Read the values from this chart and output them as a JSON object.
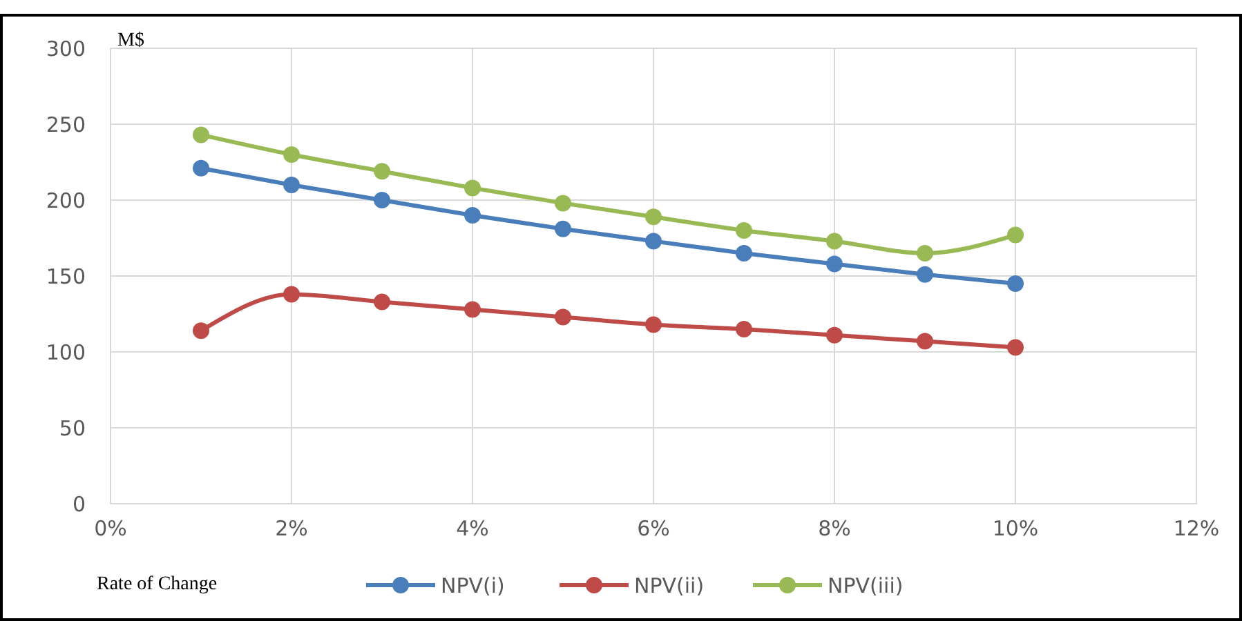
{
  "chart_data": {
    "type": "line",
    "ylabel": "M$",
    "xlabel": "Rate of Change",
    "x": [
      1,
      2,
      3,
      4,
      5,
      6,
      7,
      8,
      9,
      10
    ],
    "series": [
      {
        "name": "NPV(i)",
        "color": "#4a7ebb",
        "values": [
          221,
          210,
          200,
          190,
          181,
          173,
          165,
          158,
          151,
          145
        ]
      },
      {
        "name": "NPV(ii)",
        "color": "#be4b48",
        "values": [
          114,
          138,
          133,
          128,
          123,
          118,
          115,
          111,
          107,
          103
        ]
      },
      {
        "name": "NPV(iii)",
        "color": "#98b954",
        "values": [
          243,
          230,
          219,
          208,
          198,
          189,
          180,
          173,
          165,
          177
        ]
      }
    ],
    "xlim": [
      0,
      12
    ],
    "xticks": [
      {
        "value": 0,
        "label": "0%"
      },
      {
        "value": 2,
        "label": "2%"
      },
      {
        "value": 4,
        "label": "4%"
      },
      {
        "value": 6,
        "label": "6%"
      },
      {
        "value": 8,
        "label": "8%"
      },
      {
        "value": 10,
        "label": "10%"
      },
      {
        "value": 12,
        "label": "12%"
      }
    ],
    "ylim": [
      0,
      300
    ],
    "yticks": [
      0,
      50,
      100,
      150,
      200,
      250,
      300
    ],
    "grid": true,
    "legend": "bottom",
    "marker": "circle",
    "line_style": "solid"
  }
}
